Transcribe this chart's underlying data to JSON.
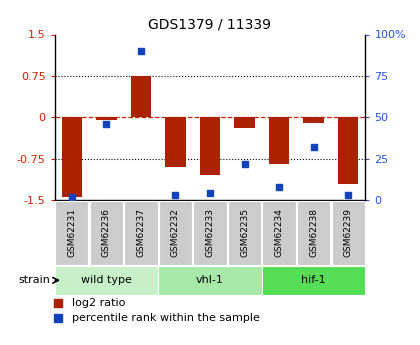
{
  "title": "GDS1379 / 11339",
  "samples": [
    "GSM62231",
    "GSM62236",
    "GSM62237",
    "GSM62232",
    "GSM62233",
    "GSM62235",
    "GSM62234",
    "GSM62238",
    "GSM62239"
  ],
  "log2_ratio": [
    -1.45,
    -0.05,
    0.75,
    -0.9,
    -1.05,
    -0.2,
    -0.85,
    -0.1,
    -1.2
  ],
  "percentile_rank": [
    2,
    46,
    90,
    3,
    4,
    22,
    8,
    32,
    3
  ],
  "groups": [
    {
      "label": "wild type",
      "start": 0,
      "end": 3,
      "color": "#c8f0c8"
    },
    {
      "label": "vhl-1",
      "start": 3,
      "end": 6,
      "color": "#a8e8a8"
    },
    {
      "label": "hif-1",
      "start": 6,
      "end": 9,
      "color": "#55dd55"
    }
  ],
  "ylim_left": [
    -1.5,
    1.5
  ],
  "ylim_right": [
    0,
    100
  ],
  "yticks_left": [
    -1.5,
    -0.75,
    0,
    0.75,
    1.5
  ],
  "ytick_labels_left": [
    "-1.5",
    "-0.75",
    "0",
    "0.75",
    "1.5"
  ],
  "yticks_right": [
    0,
    25,
    50,
    75,
    100
  ],
  "ytick_labels_right": [
    "0",
    "25",
    "50",
    "75",
    "100%"
  ],
  "bar_color": "#aa2200",
  "dot_color": "#1144bb",
  "hline_color": "#cc2200",
  "bg_color": "#ffffff",
  "sample_box_color": "#cccccc",
  "bar_width": 0.6
}
